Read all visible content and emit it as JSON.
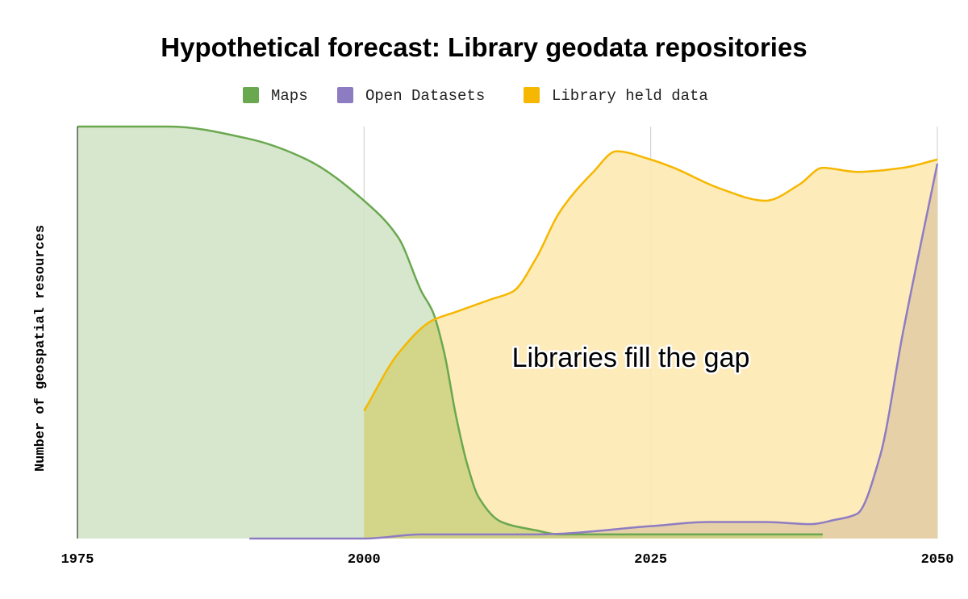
{
  "chart_data": {
    "type": "area",
    "title": "Hypothetical forecast: Library geodata repositories",
    "xlabel": "",
    "ylabel": "Number of geospatial resources",
    "xlim": [
      1975,
      2050
    ],
    "ylim": [
      0,
      100
    ],
    "x_ticks": [
      "1975",
      "2000",
      "2025",
      "2050"
    ],
    "y_axis_has_tick_labels": false,
    "grid": "vertical",
    "legend_position": "top",
    "annotation": "Libraries fill the gap",
    "series": [
      {
        "name": "Maps",
        "color": "#6aa84f",
        "fill": "#d2e4c8",
        "points": [
          [
            1975,
            100
          ],
          [
            1983,
            100
          ],
          [
            1990,
            97
          ],
          [
            1995,
            92
          ],
          [
            2000,
            82
          ],
          [
            2003,
            73
          ],
          [
            2005,
            60
          ],
          [
            2006,
            55
          ],
          [
            2007,
            45
          ],
          [
            2008,
            30
          ],
          [
            2009,
            18
          ],
          [
            2010,
            10
          ],
          [
            2012,
            4
          ],
          [
            2015,
            2
          ],
          [
            2017,
            1
          ],
          [
            2020,
            1
          ],
          [
            2030,
            1
          ],
          [
            2040,
            1
          ]
        ]
      },
      {
        "name": "Open Datasets",
        "color": "#8e7cc3",
        "fill": "#e6d0a8",
        "points": [
          [
            1990,
            0
          ],
          [
            2000,
            0
          ],
          [
            2005,
            1
          ],
          [
            2015,
            1
          ],
          [
            2025,
            3
          ],
          [
            2030,
            4
          ],
          [
            2035,
            4
          ],
          [
            2039,
            3.5
          ],
          [
            2041,
            4.5
          ],
          [
            2043,
            6
          ],
          [
            2045,
            20
          ],
          [
            2047,
            50
          ],
          [
            2050,
            91
          ]
        ]
      },
      {
        "name": "Library held data",
        "color": "#f6b700",
        "fill": "#fde9b2",
        "points": [
          [
            2000,
            31
          ],
          [
            2003,
            45
          ],
          [
            2006,
            53
          ],
          [
            2008,
            55
          ],
          [
            2011,
            58
          ],
          [
            2013,
            60
          ],
          [
            2015,
            68
          ],
          [
            2017,
            79
          ],
          [
            2020,
            89
          ],
          [
            2022,
            94
          ],
          [
            2025,
            92
          ],
          [
            2027,
            90
          ],
          [
            2031,
            85
          ],
          [
            2035,
            82
          ],
          [
            2038,
            86
          ],
          [
            2040,
            90
          ],
          [
            2043,
            89
          ],
          [
            2047,
            90
          ],
          [
            2050,
            92
          ]
        ]
      }
    ]
  }
}
